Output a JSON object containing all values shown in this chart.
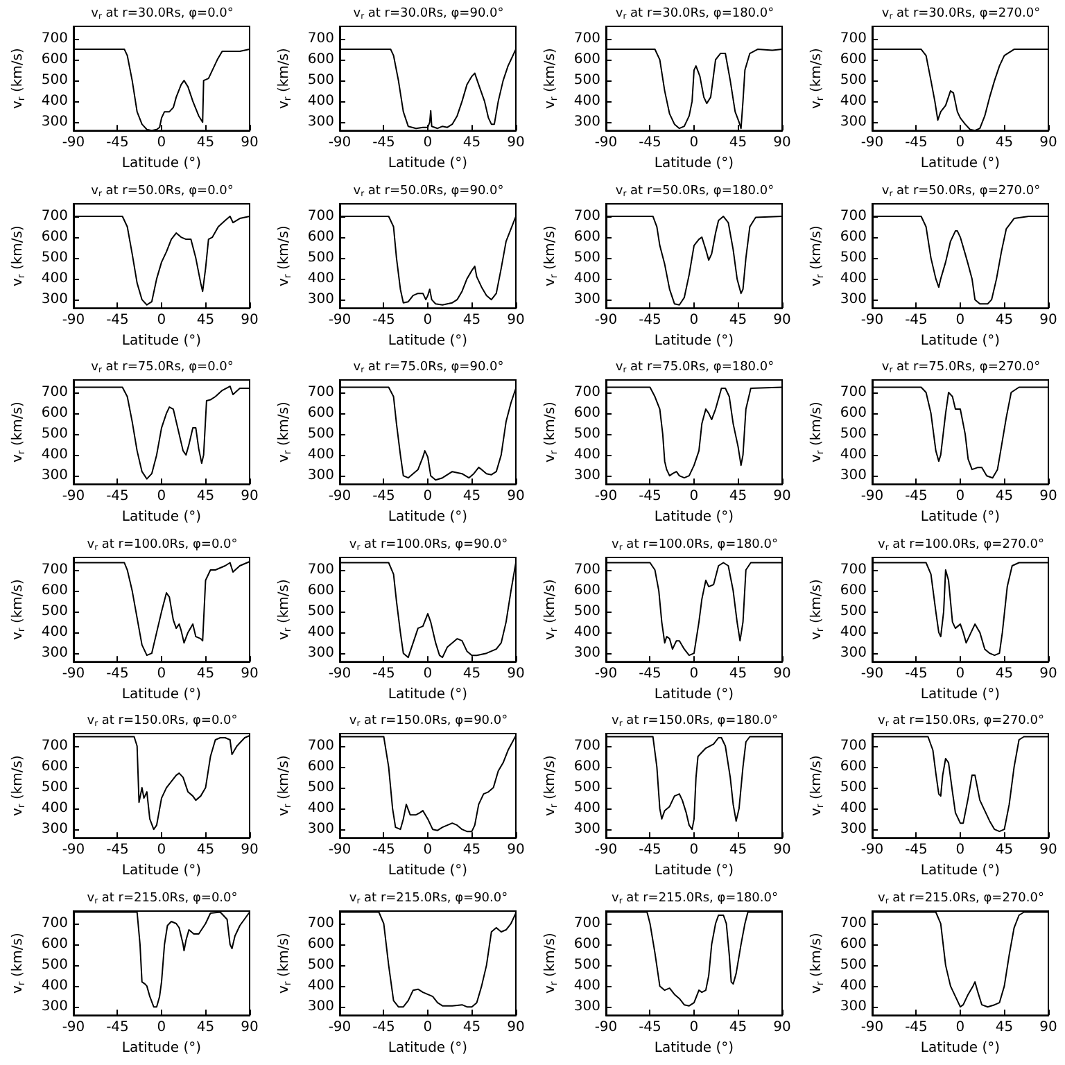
{
  "chart_data": [
    {
      "type": "line",
      "title": "v$_{r}$ at r=30.0Rs, φ=0.0°",
      "xlabel": "Latitude (°)",
      "ylabel": "v$_{r}$ (km/s)",
      "color": "#000000",
      "xlim": [
        -90,
        90
      ],
      "xticks": [
        -90,
        -45,
        0,
        45,
        90
      ],
      "ylim": [
        260,
        760
      ],
      "yticks": [
        300,
        400,
        500,
        600,
        700
      ],
      "x": [
        -90,
        -38,
        -35,
        -30,
        -25,
        -20,
        -15,
        -10,
        -5,
        -2,
        0,
        3,
        8,
        12,
        15,
        20,
        23,
        27,
        32,
        38,
        42,
        43,
        48,
        52,
        57,
        62,
        70,
        80,
        90
      ],
      "values": [
        650,
        650,
        620,
        500,
        350,
        290,
        265,
        260,
        265,
        275,
        320,
        350,
        350,
        370,
        420,
        480,
        500,
        470,
        400,
        330,
        300,
        500,
        510,
        550,
        600,
        640,
        640,
        640,
        650
      ]
    },
    {
      "type": "line",
      "title": "v$_{r}$ at r=30.0Rs, φ=90.0°",
      "xlabel": "Latitude (°)",
      "ylabel": "v$_{r}$ (km/s)",
      "color": "#000000",
      "xlim": [
        -90,
        90
      ],
      "xticks": [
        -90,
        -45,
        0,
        45,
        90
      ],
      "ylim": [
        260,
        760
      ],
      "yticks": [
        300,
        400,
        500,
        600,
        700
      ],
      "x": [
        -90,
        -38,
        -35,
        -30,
        -25,
        -20,
        -12,
        -5,
        0,
        2,
        3,
        4,
        10,
        15,
        20,
        25,
        30,
        35,
        40,
        45,
        48,
        52,
        58,
        62,
        65,
        68,
        72,
        77,
        82,
        90
      ],
      "values": [
        650,
        650,
        620,
        500,
        350,
        280,
        270,
        275,
        275,
        300,
        355,
        280,
        270,
        280,
        275,
        290,
        330,
        400,
        480,
        520,
        535,
        480,
        400,
        320,
        290,
        290,
        400,
        500,
        570,
        650
      ]
    },
    {
      "type": "line",
      "title": "v$_{r}$ at r=30.0Rs, φ=180.0°",
      "xlabel": "Latitude (°)",
      "ylabel": "v$_{r}$ (km/s)",
      "color": "#000000",
      "xlim": [
        -90,
        90
      ],
      "xticks": [
        -90,
        -45,
        0,
        45,
        90
      ],
      "ylim": [
        260,
        760
      ],
      "yticks": [
        300,
        400,
        500,
        600,
        700
      ],
      "x": [
        -90,
        -40,
        -35,
        -30,
        -25,
        -20,
        -15,
        -10,
        -5,
        -2,
        0,
        2,
        6,
        10,
        13,
        17,
        22,
        27,
        32,
        37,
        42,
        46,
        48,
        50,
        52,
        57,
        65,
        80,
        90
      ],
      "values": [
        650,
        650,
        600,
        450,
        340,
        290,
        270,
        280,
        330,
        400,
        550,
        570,
        520,
        420,
        390,
        420,
        600,
        630,
        630,
        500,
        350,
        300,
        270,
        400,
        550,
        630,
        650,
        645,
        650
      ]
    },
    {
      "type": "line",
      "title": "v$_{r}$ at r=30.0Rs, φ=270.0°",
      "xlabel": "Latitude (°)",
      "ylabel": "v$_{r}$ (km/s)",
      "color": "#000000",
      "xlim": [
        -90,
        90
      ],
      "xticks": [
        -90,
        -45,
        0,
        45,
        90
      ],
      "ylim": [
        260,
        760
      ],
      "yticks": [
        300,
        400,
        500,
        600,
        700
      ],
      "x": [
        -90,
        -40,
        -35,
        -30,
        -26,
        -23,
        -20,
        -15,
        -10,
        -7,
        -3,
        0,
        5,
        10,
        15,
        20,
        25,
        30,
        35,
        40,
        45,
        55,
        90
      ],
      "values": [
        650,
        650,
        620,
        500,
        400,
        310,
        350,
        380,
        450,
        440,
        350,
        320,
        290,
        265,
        260,
        270,
        330,
        420,
        500,
        570,
        620,
        650,
        650
      ]
    },
    {
      "type": "line",
      "title": "v$_{r}$ at r=50.0Rs, φ=0.0°",
      "xlabel": "Latitude (°)",
      "ylabel": "v$_{r}$ (km/s)",
      "color": "#000000",
      "xlim": [
        -90,
        90
      ],
      "xticks": [
        -90,
        -45,
        0,
        45,
        90
      ],
      "ylim": [
        260,
        760
      ],
      "yticks": [
        300,
        400,
        500,
        600,
        700
      ],
      "x": [
        -90,
        -40,
        -35,
        -30,
        -25,
        -20,
        -15,
        -10,
        -5,
        0,
        5,
        10,
        15,
        20,
        25,
        30,
        35,
        40,
        42,
        45,
        48,
        52,
        58,
        65,
        70,
        73,
        80,
        90
      ],
      "values": [
        700,
        700,
        650,
        520,
        380,
        300,
        275,
        290,
        400,
        480,
        530,
        590,
        620,
        600,
        590,
        590,
        500,
        380,
        340,
        450,
        590,
        600,
        650,
        680,
        700,
        670,
        690,
        700
      ]
    },
    {
      "type": "line",
      "title": "v$_{r}$ at r=50.0Rs, φ=90.0°",
      "xlabel": "Latitude (°)",
      "ylabel": "v$_{r}$ (km/s)",
      "color": "#000000",
      "xlim": [
        -90,
        90
      ],
      "xticks": [
        -90,
        -45,
        0,
        45,
        90
      ],
      "ylim": [
        260,
        760
      ],
      "yticks": [
        300,
        400,
        500,
        600,
        700
      ],
      "x": [
        -90,
        -40,
        -35,
        -32,
        -28,
        -25,
        -20,
        -15,
        -10,
        -5,
        -2,
        0,
        2,
        4,
        8,
        15,
        25,
        30,
        35,
        40,
        45,
        48,
        50,
        55,
        60,
        65,
        70,
        75,
        80,
        85,
        90
      ],
      "values": [
        700,
        700,
        650,
        500,
        350,
        285,
        290,
        320,
        330,
        330,
        300,
        320,
        350,
        300,
        280,
        275,
        285,
        300,
        340,
        400,
        440,
        460,
        410,
        360,
        320,
        300,
        330,
        450,
        580,
        640,
        700
      ]
    },
    {
      "type": "line",
      "title": "v$_{r}$ at r=50.0Rs, φ=180.0°",
      "xlabel": "Latitude (°)",
      "ylabel": "v$_{r}$ (km/s)",
      "color": "#000000",
      "xlim": [
        -90,
        90
      ],
      "xticks": [
        -90,
        -45,
        0,
        45,
        90
      ],
      "ylim": [
        260,
        760
      ],
      "yticks": [
        300,
        400,
        500,
        600,
        700
      ],
      "x": [
        -90,
        -42,
        -38,
        -35,
        -30,
        -25,
        -20,
        -15,
        -10,
        -5,
        0,
        5,
        8,
        12,
        15,
        18,
        22,
        25,
        30,
        35,
        40,
        44,
        48,
        50,
        53,
        57,
        63,
        90
      ],
      "values": [
        700,
        700,
        650,
        560,
        470,
        350,
        280,
        275,
        310,
        420,
        560,
        590,
        600,
        540,
        490,
        520,
        620,
        680,
        700,
        670,
        540,
        400,
        330,
        350,
        500,
        650,
        695,
        700
      ]
    },
    {
      "type": "line",
      "title": "v$_{r}$ at r=50.0Rs, φ=270.0°",
      "xlabel": "Latitude (°)",
      "ylabel": "v$_{r}$ (km/s)",
      "color": "#000000",
      "xlim": [
        -90,
        90
      ],
      "xticks": [
        -90,
        -45,
        0,
        45,
        90
      ],
      "ylim": [
        260,
        760
      ],
      "yticks": [
        300,
        400,
        500,
        600,
        700
      ],
      "x": [
        -90,
        -40,
        -35,
        -30,
        -25,
        -22,
        -20,
        -15,
        -10,
        -5,
        -3,
        0,
        5,
        8,
        12,
        15,
        20,
        28,
        32,
        37,
        42,
        47,
        55,
        70,
        90
      ],
      "values": [
        700,
        700,
        650,
        500,
        400,
        360,
        400,
        480,
        580,
        630,
        630,
        600,
        520,
        470,
        400,
        300,
        280,
        280,
        300,
        400,
        530,
        640,
        690,
        700,
        700
      ]
    },
    {
      "type": "line",
      "title": "v$_{r}$ at r=75.0Rs, φ=0.0°",
      "xlabel": "Latitude (°)",
      "ylabel": "v$_{r}$ (km/s)",
      "color": "#000000",
      "xlim": [
        -90,
        90
      ],
      "xticks": [
        -90,
        -45,
        0,
        45,
        90
      ],
      "ylim": [
        260,
        760
      ],
      "yticks": [
        300,
        400,
        500,
        600,
        700
      ],
      "x": [
        -90,
        -40,
        -35,
        -30,
        -25,
        -20,
        -15,
        -10,
        -5,
        0,
        5,
        8,
        12,
        17,
        22,
        25,
        28,
        32,
        35,
        38,
        41,
        43,
        46,
        50,
        55,
        62,
        70,
        73,
        80,
        90
      ],
      "values": [
        725,
        725,
        680,
        560,
        420,
        320,
        285,
        310,
        400,
        530,
        600,
        630,
        620,
        520,
        420,
        400,
        450,
        530,
        530,
        430,
        360,
        400,
        660,
        665,
        680,
        710,
        730,
        690,
        720,
        720
      ]
    },
    {
      "type": "line",
      "title": "v$_{r}$ at r=75.0Rs, φ=90.0°",
      "xlabel": "Latitude (°)",
      "ylabel": "v$_{r}$ (km/s)",
      "color": "#000000",
      "xlim": [
        -90,
        90
      ],
      "xticks": [
        -90,
        -45,
        0,
        45,
        90
      ],
      "ylim": [
        260,
        760
      ],
      "yticks": [
        300,
        400,
        500,
        600,
        700
      ],
      "x": [
        -90,
        -40,
        -35,
        -32,
        -28,
        -25,
        -20,
        -15,
        -10,
        -5,
        -3,
        0,
        3,
        8,
        15,
        25,
        30,
        35,
        42,
        47,
        52,
        55,
        60,
        65,
        70,
        75,
        80,
        85,
        90
      ],
      "values": [
        725,
        725,
        680,
        550,
        400,
        300,
        290,
        310,
        330,
        390,
        420,
        390,
        300,
        280,
        290,
        320,
        315,
        310,
        290,
        310,
        340,
        330,
        310,
        305,
        320,
        400,
        560,
        650,
        720
      ]
    },
    {
      "type": "line",
      "title": "v$_{r}$ at r=75.0Rs, φ=180.0°",
      "xlabel": "Latitude (°)",
      "ylabel": "v$_{r}$ (km/s)",
      "color": "#000000",
      "xlim": [
        -90,
        90
      ],
      "xticks": [
        -90,
        -45,
        0,
        45,
        90
      ],
      "ylim": [
        260,
        760
      ],
      "yticks": [
        300,
        400,
        500,
        600,
        700
      ],
      "x": [
        -90,
        -45,
        -40,
        -35,
        -32,
        -30,
        -28,
        -25,
        -22,
        -18,
        -15,
        -10,
        -5,
        0,
        5,
        8,
        12,
        15,
        18,
        22,
        28,
        32,
        36,
        40,
        45,
        48,
        50,
        53,
        58,
        90
      ],
      "values": [
        725,
        725,
        680,
        620,
        500,
        370,
        330,
        300,
        310,
        320,
        300,
        290,
        300,
        350,
        420,
        550,
        620,
        600,
        570,
        620,
        720,
        720,
        680,
        550,
        440,
        350,
        400,
        620,
        720,
        725
      ]
    },
    {
      "type": "line",
      "title": "v$_{r}$ at r=75.0Rs, φ=270.0°",
      "xlabel": "Latitude (°)",
      "ylabel": "v$_{r}$ (km/s)",
      "color": "#000000",
      "xlim": [
        -90,
        90
      ],
      "xticks": [
        -90,
        -45,
        0,
        45,
        90
      ],
      "ylim": [
        260,
        760
      ],
      "yticks": [
        300,
        400,
        500,
        600,
        700
      ],
      "x": [
        -90,
        -40,
        -35,
        -30,
        -25,
        -22,
        -20,
        -15,
        -12,
        -8,
        -5,
        0,
        5,
        8,
        12,
        18,
        22,
        27,
        33,
        38,
        42,
        47,
        52,
        60,
        90
      ],
      "values": [
        725,
        725,
        700,
        600,
        420,
        370,
        400,
        600,
        700,
        680,
        620,
        620,
        500,
        380,
        330,
        340,
        340,
        300,
        290,
        330,
        440,
        580,
        700,
        725,
        725
      ]
    },
    {
      "type": "line",
      "title": "v$_{r}$ at r=100.0Rs, φ=0.0°",
      "xlabel": "Latitude (°)",
      "ylabel": "v$_{r}$ (km/s)",
      "color": "#000000",
      "xlim": [
        -90,
        90
      ],
      "xticks": [
        -90,
        -45,
        0,
        45,
        90
      ],
      "ylim": [
        260,
        760
      ],
      "yticks": [
        300,
        400,
        500,
        600,
        700
      ],
      "x": [
        -90,
        -38,
        -35,
        -30,
        -25,
        -20,
        -15,
        -10,
        -5,
        0,
        5,
        8,
        12,
        15,
        18,
        20,
        23,
        27,
        32,
        35,
        40,
        42,
        45,
        50,
        55,
        60,
        65,
        70,
        73,
        80,
        90
      ],
      "values": [
        735,
        735,
        700,
        600,
        470,
        340,
        290,
        300,
        400,
        500,
        590,
        570,
        460,
        420,
        440,
        410,
        350,
        400,
        440,
        380,
        370,
        360,
        650,
        700,
        700,
        710,
        720,
        735,
        690,
        720,
        740
      ]
    },
    {
      "type": "line",
      "title": "v$_{r}$ at r=100.0Rs, φ=90.0°",
      "xlabel": "Latitude (°)",
      "ylabel": "v$_{r}$ (km/s)",
      "color": "#000000",
      "xlim": [
        -90,
        90
      ],
      "xticks": [
        -90,
        -45,
        0,
        45,
        90
      ],
      "ylim": [
        260,
        760
      ],
      "yticks": [
        300,
        400,
        500,
        600,
        700
      ],
      "x": [
        -90,
        -40,
        -35,
        -32,
        -28,
        -25,
        -20,
        -15,
        -10,
        -5,
        0,
        3,
        8,
        12,
        15,
        20,
        25,
        30,
        35,
        40,
        45,
        50,
        60,
        65,
        70,
        75,
        80,
        85,
        90
      ],
      "values": [
        735,
        735,
        680,
        550,
        400,
        300,
        280,
        350,
        420,
        430,
        490,
        450,
        350,
        290,
        280,
        330,
        350,
        370,
        360,
        310,
        290,
        290,
        300,
        310,
        320,
        350,
        450,
        600,
        735
      ]
    },
    {
      "type": "line",
      "title": "v$_{r}$ at r=100.0Rs, φ=180.0°",
      "xlabel": "Latitude (°)",
      "ylabel": "v$_{r}$ (km/s)",
      "color": "#000000",
      "xlim": [
        -90,
        90
      ],
      "xticks": [
        -90,
        -45,
        0,
        45,
        90
      ],
      "ylim": [
        260,
        760
      ],
      "yticks": [
        300,
        400,
        500,
        600,
        700
      ],
      "x": [
        -90,
        -45,
        -40,
        -36,
        -33,
        -30,
        -28,
        -25,
        -22,
        -18,
        -15,
        -10,
        -5,
        0,
        5,
        8,
        12,
        15,
        20,
        25,
        30,
        35,
        40,
        44,
        47,
        50,
        53,
        58,
        90
      ],
      "values": [
        735,
        735,
        700,
        600,
        450,
        350,
        380,
        370,
        320,
        360,
        360,
        320,
        290,
        300,
        450,
        560,
        650,
        620,
        630,
        720,
        735,
        720,
        600,
        450,
        360,
        450,
        700,
        735,
        735
      ]
    },
    {
      "type": "line",
      "title": "v$_{r}$ at r=100.0Rs, φ=270.0°",
      "xlabel": "Latitude (°)",
      "ylabel": "v$_{r}$ (km/s)",
      "color": "#000000",
      "xlim": [
        -90,
        90
      ],
      "xticks": [
        -90,
        -45,
        0,
        45,
        90
      ],
      "ylim": [
        260,
        760
      ],
      "yticks": [
        300,
        400,
        500,
        600,
        700
      ],
      "x": [
        -90,
        -35,
        -30,
        -25,
        -22,
        -20,
        -17,
        -15,
        -12,
        -8,
        -5,
        0,
        3,
        6,
        10,
        15,
        20,
        25,
        30,
        35,
        40,
        43,
        48,
        53,
        60,
        90
      ],
      "values": [
        735,
        735,
        680,
        500,
        400,
        380,
        500,
        700,
        650,
        450,
        420,
        440,
        400,
        350,
        390,
        440,
        400,
        320,
        300,
        290,
        300,
        400,
        620,
        720,
        735,
        735
      ]
    },
    {
      "type": "line",
      "title": "v$_{r}$ at r=150.0Rs, φ=0.0°",
      "xlabel": "Latitude (°)",
      "ylabel": "v$_{r}$ (km/s)",
      "color": "#000000",
      "xlim": [
        -90,
        90
      ],
      "xticks": [
        -90,
        -45,
        0,
        45,
        90
      ],
      "ylim": [
        260,
        760
      ],
      "yticks": [
        300,
        400,
        500,
        600,
        700
      ],
      "x": [
        -90,
        -28,
        -25,
        -23,
        -20,
        -18,
        -15,
        -12,
        -8,
        -5,
        0,
        5,
        10,
        15,
        18,
        22,
        27,
        32,
        35,
        40,
        45,
        50,
        55,
        60,
        65,
        70,
        72,
        77,
        85,
        90
      ],
      "values": [
        745,
        745,
        700,
        430,
        500,
        450,
        480,
        350,
        300,
        320,
        450,
        500,
        530,
        560,
        570,
        550,
        480,
        460,
        440,
        460,
        500,
        650,
        730,
        740,
        740,
        730,
        660,
        700,
        740,
        750
      ]
    },
    {
      "type": "line",
      "title": "v$_{r}$ at r=150.0Rs, φ=90.0°",
      "xlabel": "Latitude (°)",
      "ylabel": "v$_{r}$ (km/s)",
      "color": "#000000",
      "xlim": [
        -90,
        90
      ],
      "xticks": [
        -90,
        -45,
        0,
        45,
        90
      ],
      "ylim": [
        260,
        760
      ],
      "yticks": [
        300,
        400,
        500,
        600,
        700
      ],
      "x": [
        -90,
        -45,
        -40,
        -36,
        -33,
        -28,
        -25,
        -22,
        -18,
        -12,
        -8,
        -5,
        0,
        5,
        10,
        15,
        25,
        30,
        35,
        40,
        45,
        48,
        52,
        57,
        62,
        67,
        72,
        77,
        82,
        90
      ],
      "values": [
        745,
        745,
        600,
        400,
        310,
        300,
        350,
        420,
        370,
        370,
        380,
        390,
        350,
        300,
        295,
        310,
        330,
        320,
        300,
        290,
        290,
        320,
        420,
        470,
        480,
        500,
        580,
        620,
        680,
        750
      ]
    },
    {
      "type": "line",
      "title": "v$_{r}$ at r=150.0Rs, φ=180.0°",
      "xlabel": "Latitude (°)",
      "ylabel": "v$_{r}$ (km/s)",
      "color": "#000000",
      "xlim": [
        -90,
        90
      ],
      "xticks": [
        -90,
        -45,
        0,
        45,
        90
      ],
      "ylim": [
        260,
        760
      ],
      "yticks": [
        300,
        400,
        500,
        600,
        700
      ],
      "x": [
        -90,
        -42,
        -38,
        -35,
        -33,
        -30,
        -25,
        -20,
        -15,
        -12,
        -8,
        -5,
        -2,
        0,
        2,
        4,
        8,
        12,
        16,
        20,
        25,
        28,
        32,
        37,
        40,
        43,
        46,
        50,
        53,
        57,
        90
      ],
      "values": [
        745,
        745,
        600,
        400,
        350,
        390,
        410,
        460,
        470,
        440,
        380,
        320,
        300,
        350,
        550,
        650,
        670,
        690,
        700,
        710,
        740,
        740,
        700,
        550,
        420,
        340,
        400,
        600,
        720,
        745,
        745
      ]
    },
    {
      "type": "line",
      "title": "v$_{r}$ at r=150.0Rs, φ=270.0°",
      "xlabel": "Latitude (°)",
      "ylabel": "v$_{r}$ (km/s)",
      "color": "#000000",
      "xlim": [
        -90,
        90
      ],
      "xticks": [
        -90,
        -45,
        0,
        45,
        90
      ],
      "ylim": [
        260,
        760
      ],
      "yticks": [
        300,
        400,
        500,
        600,
        700
      ],
      "x": [
        -90,
        -33,
        -28,
        -25,
        -22,
        -20,
        -18,
        -15,
        -12,
        -8,
        -5,
        0,
        3,
        8,
        12,
        15,
        20,
        25,
        30,
        35,
        40,
        45,
        50,
        55,
        60,
        65,
        90
      ],
      "values": [
        745,
        745,
        680,
        570,
        470,
        460,
        560,
        640,
        620,
        480,
        380,
        330,
        330,
        450,
        560,
        560,
        440,
        390,
        340,
        300,
        290,
        300,
        420,
        600,
        730,
        745,
        745
      ]
    },
    {
      "type": "line",
      "title": "v$_{r}$ at r=215.0Rs, φ=0.0°",
      "xlabel": "Latitude (°)",
      "ylabel": "v$_{r}$ (km/s)",
      "color": "#000000",
      "xlim": [
        -90,
        90
      ],
      "xticks": [
        -90,
        -45,
        0,
        45,
        90
      ],
      "ylim": [
        260,
        760
      ],
      "yticks": [
        300,
        400,
        500,
        600,
        700
      ],
      "x": [
        -90,
        -25,
        -22,
        -20,
        -17,
        -15,
        -12,
        -8,
        -5,
        -2,
        0,
        3,
        6,
        10,
        15,
        18,
        22,
        23,
        25,
        28,
        33,
        38,
        45,
        50,
        60,
        67,
        70,
        72,
        75,
        80,
        90
      ],
      "values": [
        755,
        755,
        600,
        420,
        410,
        400,
        350,
        300,
        300,
        350,
        420,
        600,
        690,
        710,
        700,
        680,
        600,
        570,
        620,
        670,
        650,
        650,
        700,
        750,
        755,
        720,
        600,
        580,
        640,
        690,
        755
      ]
    },
    {
      "type": "line",
      "title": "v$_{r}$ at r=215.0Rs, φ=90.0°",
      "xlabel": "Latitude (°)",
      "ylabel": "v$_{r}$ (km/s)",
      "color": "#000000",
      "xlim": [
        -90,
        90
      ],
      "xticks": [
        -90,
        -45,
        0,
        45,
        90
      ],
      "ylim": [
        260,
        760
      ],
      "yticks": [
        300,
        400,
        500,
        600,
        700
      ],
      "x": [
        -90,
        -50,
        -45,
        -40,
        -35,
        -30,
        -25,
        -20,
        -15,
        -10,
        -5,
        0,
        5,
        10,
        15,
        25,
        35,
        40,
        45,
        50,
        55,
        60,
        65,
        70,
        75,
        80,
        85,
        90
      ],
      "values": [
        755,
        755,
        700,
        500,
        330,
        300,
        300,
        330,
        380,
        385,
        370,
        360,
        350,
        320,
        305,
        305,
        310,
        300,
        300,
        320,
        400,
        500,
        660,
        680,
        660,
        670,
        700,
        750
      ]
    },
    {
      "type": "line",
      "title": "v$_{r}$ at r=215.0Rs, φ=180.0°",
      "xlabel": "Latitude (°)",
      "ylabel": "v$_{r}$ (km/s)",
      "color": "#000000",
      "xlim": [
        -90,
        90
      ],
      "xticks": [
        -90,
        -45,
        0,
        45,
        90
      ],
      "ylim": [
        260,
        760
      ],
      "yticks": [
        300,
        400,
        500,
        600,
        700
      ],
      "x": [
        -90,
        -48,
        -45,
        -40,
        -35,
        -30,
        -25,
        -20,
        -15,
        -10,
        -5,
        0,
        5,
        8,
        12,
        15,
        18,
        22,
        25,
        30,
        33,
        36,
        38,
        40,
        43,
        48,
        52,
        55,
        90
      ],
      "values": [
        755,
        755,
        700,
        560,
        400,
        380,
        390,
        360,
        340,
        310,
        305,
        320,
        380,
        370,
        380,
        450,
        600,
        700,
        740,
        740,
        700,
        550,
        420,
        410,
        460,
        600,
        700,
        755,
        755
      ]
    },
    {
      "type": "line",
      "title": "v$_{r}$ at r=215.0Rs, φ=270.0°",
      "xlabel": "Latitude (°)",
      "ylabel": "v$_{r}$ (km/s)",
      "color": "#000000",
      "xlim": [
        -90,
        90
      ],
      "xticks": [
        -90,
        -45,
        0,
        45,
        90
      ],
      "ylim": [
        260,
        760
      ],
      "yticks": [
        300,
        400,
        500,
        600,
        700
      ],
      "x": [
        -90,
        -25,
        -20,
        -15,
        -10,
        -5,
        0,
        3,
        8,
        13,
        15,
        18,
        22,
        28,
        35,
        40,
        45,
        50,
        55,
        60,
        65,
        90
      ],
      "values": [
        755,
        755,
        700,
        500,
        400,
        350,
        300,
        310,
        360,
        400,
        420,
        370,
        310,
        300,
        310,
        320,
        400,
        550,
        680,
        740,
        755,
        755
      ]
    }
  ]
}
